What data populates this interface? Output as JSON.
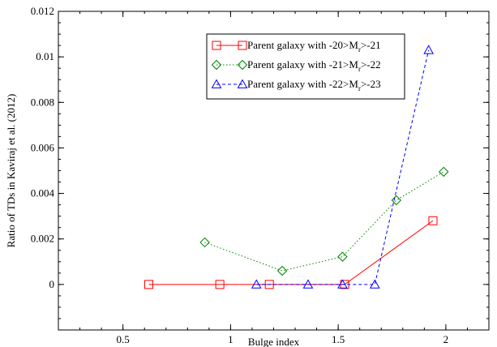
{
  "chart_data": {
    "type": "line",
    "xlabel": "Bulge index",
    "ylabel": "Ratio of TDs in Kaviraj et al. (2012)",
    "xlim": [
      0.2,
      2.2
    ],
    "ylim": [
      -0.002,
      0.012
    ],
    "xticks": [
      0.5,
      1,
      1.5,
      2
    ],
    "xtick_labels": [
      "0.5",
      "1",
      "1.5",
      "2"
    ],
    "yticks": [
      0,
      0.002,
      0.004,
      0.006,
      0.008,
      0.01,
      0.012
    ],
    "ytick_labels": [
      "0",
      "0.002",
      "0.004",
      "0.006",
      "0.008",
      "0.01",
      "0.012"
    ],
    "grid": false,
    "legend_position": "top-right",
    "series": [
      {
        "name_parts": [
          "Parent galaxy with -20>M",
          "r",
          ">-21"
        ],
        "color": "#ff0000",
        "marker": "square",
        "linestyle": "solid",
        "x": [
          0.62,
          0.95,
          1.18,
          1.53,
          1.94
        ],
        "y": [
          0,
          0,
          0,
          0,
          0.0028
        ]
      },
      {
        "name_parts": [
          "Parent galaxy with -21>M",
          "r",
          ">-22"
        ],
        "color": "#008000",
        "marker": "diamond",
        "linestyle": "dotted",
        "x": [
          0.88,
          1.24,
          1.52,
          1.77,
          1.99
        ],
        "y": [
          0.00185,
          0.0006,
          0.00122,
          0.0037,
          0.00495
        ]
      },
      {
        "name_parts": [
          "Parent galaxy with -22>M",
          "r",
          ">-23"
        ],
        "color": "#0000ff",
        "marker": "triangle",
        "linestyle": "dashed",
        "x": [
          1.12,
          1.36,
          1.52,
          1.67,
          1.92
        ],
        "y": [
          0,
          0,
          0,
          0,
          0.0103
        ]
      }
    ]
  }
}
